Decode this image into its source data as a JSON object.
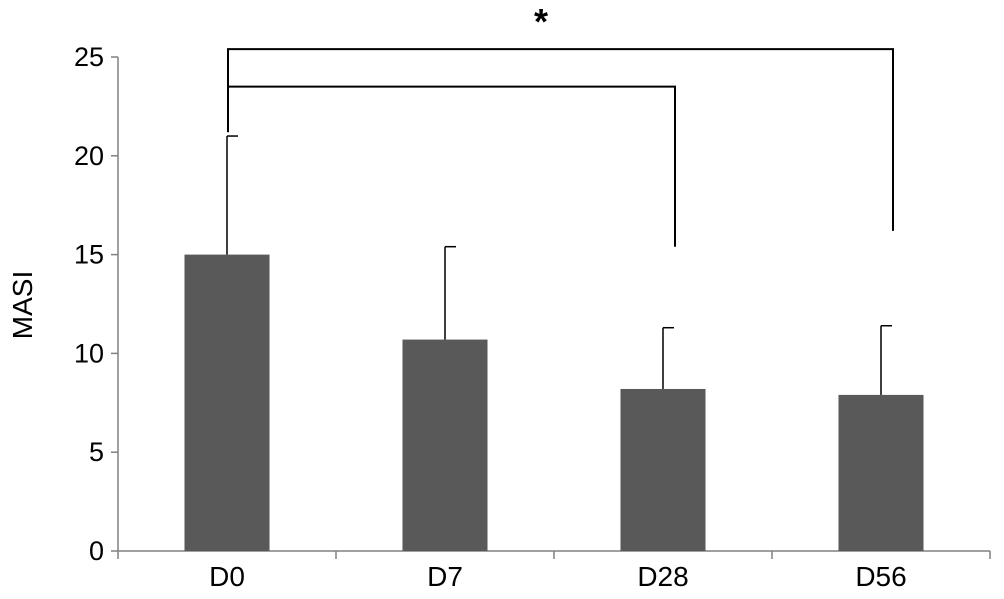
{
  "chart_data": {
    "type": "bar",
    "categories": [
      "D0",
      "D7",
      "D28",
      "D56"
    ],
    "values": [
      15.0,
      10.7,
      8.2,
      7.9
    ],
    "error_plus": [
      6.0,
      4.7,
      3.1,
      3.5
    ],
    "xlabel": "",
    "ylabel": "MASI",
    "ylim": [
      0,
      25
    ],
    "yticks": [
      0,
      5,
      10,
      15,
      20,
      25
    ],
    "grid": false,
    "bar_color": "#595959",
    "significance": {
      "marker": "*",
      "comparisons": [
        [
          "D0",
          "D28"
        ],
        [
          "D0",
          "D56"
        ]
      ]
    }
  }
}
